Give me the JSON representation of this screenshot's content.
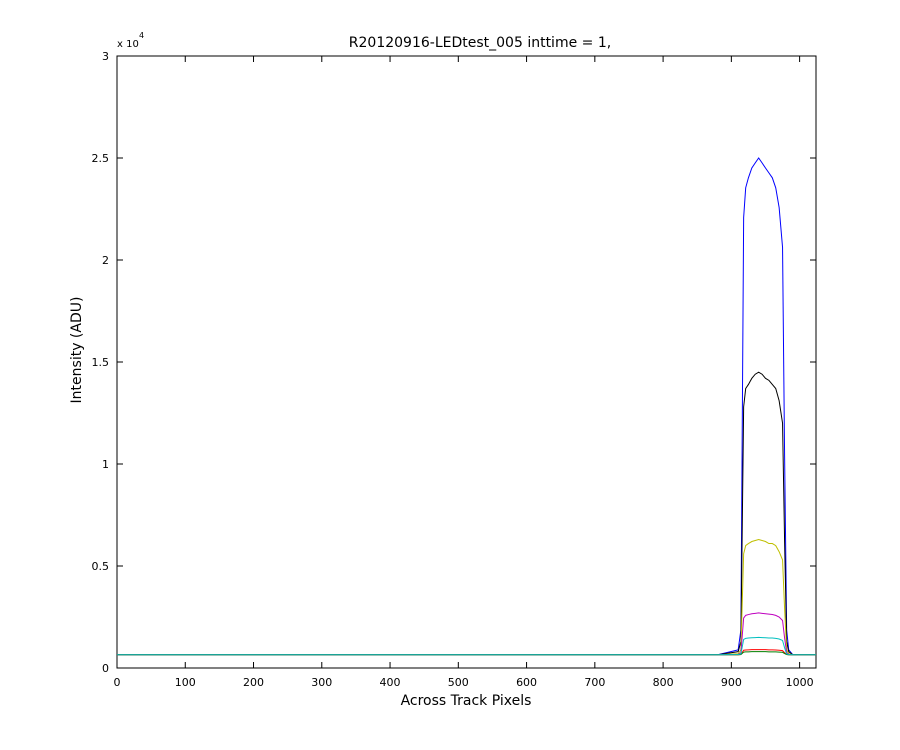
{
  "chart_data": {
    "type": "line",
    "title": "R20120916-LEDtest_005 inttime = 1,",
    "x_label": "Across Track Pixels",
    "y_label": "Intensity (ADU)",
    "y_multiplier": "x 10",
    "y_multiplier_exponent": "4",
    "x": [
      0,
      100,
      200,
      300,
      400,
      500,
      600,
      700,
      800,
      880,
      910,
      914,
      918,
      921,
      925,
      930,
      935,
      940,
      945,
      950,
      955,
      960,
      965,
      970,
      975,
      978,
      981,
      984,
      990,
      1000,
      1024
    ],
    "series": [
      {
        "color": "#0000ff",
        "values": [
          0.065,
          0.065,
          0.065,
          0.065,
          0.065,
          0.065,
          0.065,
          0.065,
          0.065,
          0.065,
          0.089,
          0.187,
          2.208,
          2.354,
          2.403,
          2.451,
          2.476,
          2.5,
          2.476,
          2.451,
          2.427,
          2.403,
          2.354,
          2.257,
          2.062,
          1.039,
          0.187,
          0.089,
          0.065,
          0.065,
          0.065
        ]
      },
      {
        "color": "#000000",
        "values": [
          0.065,
          0.065,
          0.065,
          0.065,
          0.065,
          0.065,
          0.065,
          0.065,
          0.065,
          0.065,
          0.08,
          0.13,
          1.28,
          1.37,
          1.39,
          1.42,
          1.44,
          1.45,
          1.44,
          1.42,
          1.41,
          1.39,
          1.37,
          1.31,
          1.2,
          0.62,
          0.13,
          0.08,
          0.065,
          0.065,
          0.065
        ]
      },
      {
        "color": "#bfbf00",
        "values": [
          0.065,
          0.065,
          0.065,
          0.065,
          0.065,
          0.065,
          0.065,
          0.065,
          0.065,
          0.065,
          0.07,
          0.09,
          0.56,
          0.6,
          0.61,
          0.62,
          0.625,
          0.63,
          0.625,
          0.62,
          0.61,
          0.61,
          0.6,
          0.57,
          0.53,
          0.29,
          0.09,
          0.07,
          0.065,
          0.065,
          0.065
        ]
      },
      {
        "color": "#bf00bf",
        "values": [
          0.065,
          0.065,
          0.065,
          0.065,
          0.065,
          0.065,
          0.065,
          0.065,
          0.065,
          0.065,
          0.067,
          0.075,
          0.245,
          0.258,
          0.262,
          0.266,
          0.268,
          0.27,
          0.268,
          0.266,
          0.264,
          0.262,
          0.258,
          0.25,
          0.233,
          0.147,
          0.075,
          0.067,
          0.065,
          0.065,
          0.065
        ]
      },
      {
        "color": "#ff0000",
        "values": [
          0.065,
          0.065,
          0.065,
          0.065,
          0.065,
          0.065,
          0.065,
          0.065,
          0.065,
          0.065,
          0.065,
          0.066,
          0.087,
          0.088,
          0.089,
          0.09,
          0.09,
          0.09,
          0.09,
          0.09,
          0.089,
          0.089,
          0.088,
          0.087,
          0.085,
          0.075,
          0.066,
          0.065,
          0.065,
          0.065,
          0.065
        ]
      },
      {
        "color": "#008000",
        "values": [
          0.065,
          0.065,
          0.065,
          0.065,
          0.065,
          0.065,
          0.065,
          0.065,
          0.065,
          0.065,
          0.065,
          0.066,
          0.078,
          0.079,
          0.079,
          0.08,
          0.08,
          0.08,
          0.08,
          0.08,
          0.079,
          0.079,
          0.079,
          0.078,
          0.077,
          0.071,
          0.066,
          0.065,
          0.065,
          0.065,
          0.065
        ]
      },
      {
        "color": "#00bfbf",
        "values": [
          0.065,
          0.065,
          0.065,
          0.065,
          0.065,
          0.065,
          0.065,
          0.065,
          0.065,
          0.065,
          0.066,
          0.069,
          0.14,
          0.145,
          0.147,
          0.148,
          0.149,
          0.15,
          0.149,
          0.148,
          0.147,
          0.147,
          0.145,
          0.142,
          0.135,
          0.099,
          0.069,
          0.066,
          0.065,
          0.065,
          0.065
        ]
      }
    ],
    "xlim": [
      0,
      1024
    ],
    "xticks": [
      0,
      100,
      200,
      300,
      400,
      500,
      600,
      700,
      800,
      900,
      1000
    ],
    "ylim": [
      0,
      3
    ],
    "yticks": [
      0,
      0.5,
      1,
      1.5,
      2,
      2.5,
      3
    ],
    "grid": false
  }
}
